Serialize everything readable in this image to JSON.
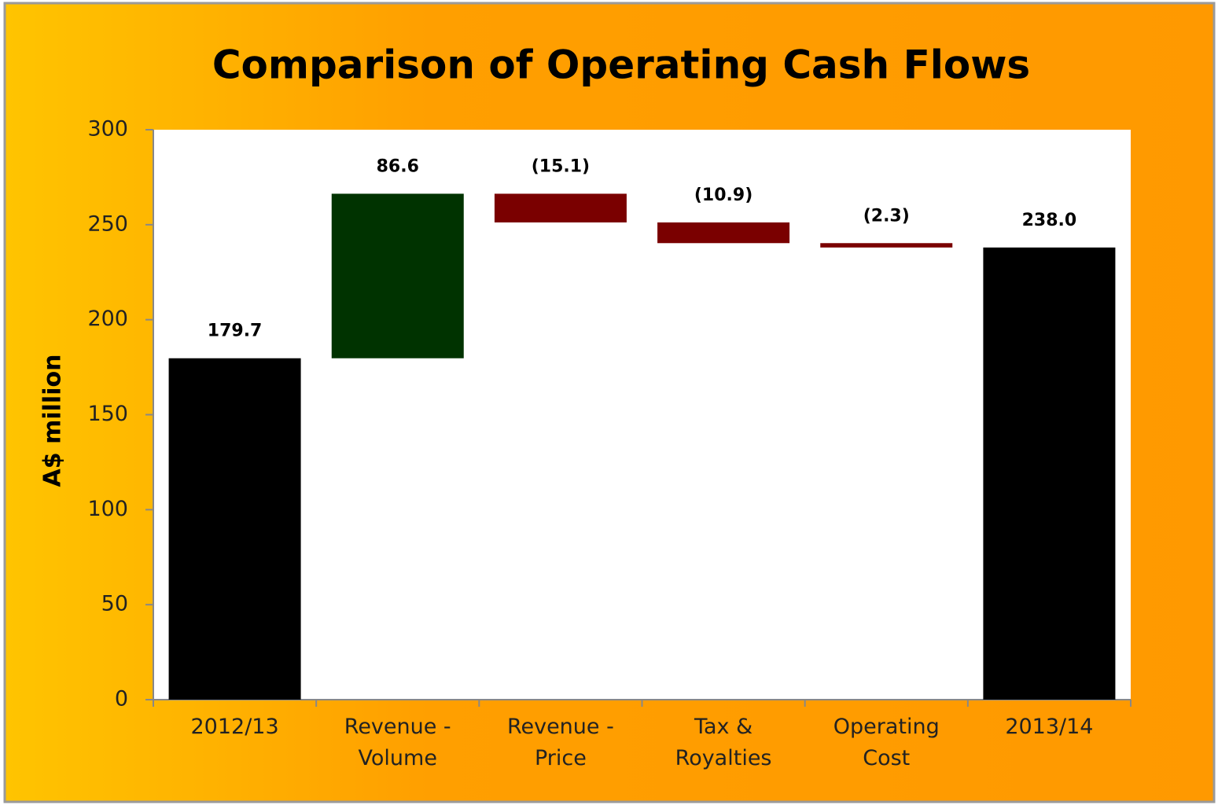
{
  "chart_data": {
    "type": "waterfall",
    "title": "Comparison of Operating Cash Flows",
    "y_label": "A$ million",
    "categories": [
      "2012/13",
      "Revenue -\nVolume",
      "Revenue -\nPrice",
      "Tax &\nRoyalties",
      "Operating\nCost",
      "2013/14"
    ],
    "values": [
      179.7,
      86.6,
      -15.1,
      -10.9,
      -2.3,
      238.0
    ],
    "value_labels": [
      "179.7",
      "86.6",
      "(15.1)",
      "(10.9)",
      "(2.3)",
      "238.0"
    ],
    "is_total": [
      true,
      false,
      false,
      false,
      false,
      true
    ],
    "colors": [
      "#000000",
      "#003300",
      "#7a0000",
      "#7a0000",
      "#7a0000",
      "#000000"
    ],
    "ylim": [
      0,
      300
    ],
    "yticks": [
      0,
      50,
      100,
      150,
      200,
      250,
      300
    ],
    "grid": false
  }
}
